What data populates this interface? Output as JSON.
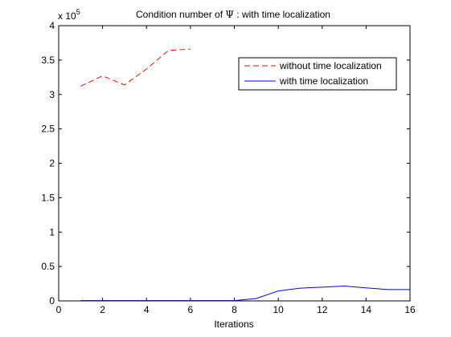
{
  "chart_data": {
    "type": "line",
    "title_prefix": "Condition number of ",
    "title_symbol": "Ψ",
    "title_suffix": " : with time localization",
    "xlabel": "Iterations",
    "ylabel": "",
    "exponent_base": "x 10",
    "exponent_power": "5",
    "xlim": [
      0,
      16
    ],
    "ylim": [
      0,
      4
    ],
    "xticks": [
      0,
      2,
      4,
      6,
      8,
      10,
      12,
      14,
      16
    ],
    "xtick_labels": [
      "0",
      "2",
      "4",
      "6",
      "8",
      "10",
      "12",
      "14",
      "16"
    ],
    "yticks": [
      0,
      0.5,
      1,
      1.5,
      2,
      2.5,
      3,
      3.5,
      4
    ],
    "ytick_labels": [
      "0",
      "0.5",
      "1",
      "1.5",
      "2",
      "2.5",
      "3",
      "3.5",
      "4"
    ],
    "grid": false,
    "legend_position": "top-right",
    "series": [
      {
        "name": "without time localization",
        "color": "#ff0000",
        "dash": "dashed",
        "x": [
          1,
          2,
          3,
          4,
          5,
          6
        ],
        "y": [
          3.12,
          3.27,
          3.14,
          3.37,
          3.64,
          3.66
        ]
      },
      {
        "name": "with time localization",
        "color": "#0000ff",
        "dash": "solid",
        "x": [
          1,
          2,
          3,
          4,
          5,
          6,
          7,
          8,
          9,
          10,
          11,
          12,
          13,
          14,
          15,
          16
        ],
        "y": [
          0.005,
          0.005,
          0.005,
          0.005,
          0.005,
          0.005,
          0.005,
          0.005,
          0.035,
          0.145,
          0.185,
          0.2,
          0.215,
          0.19,
          0.165,
          0.165
        ]
      }
    ]
  }
}
